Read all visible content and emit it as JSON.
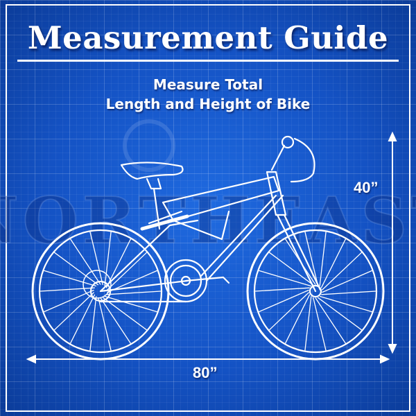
{
  "title": "Measurement Guide",
  "subtitle": {
    "line1": "Measure Total",
    "line2": "Length and Height of Bike"
  },
  "dimensions": {
    "height_label": "40”",
    "length_label": "80”"
  },
  "watermark_logo": "NORTHEAST",
  "colors": {
    "background": "#1452c4",
    "lines": "#ffffff"
  }
}
